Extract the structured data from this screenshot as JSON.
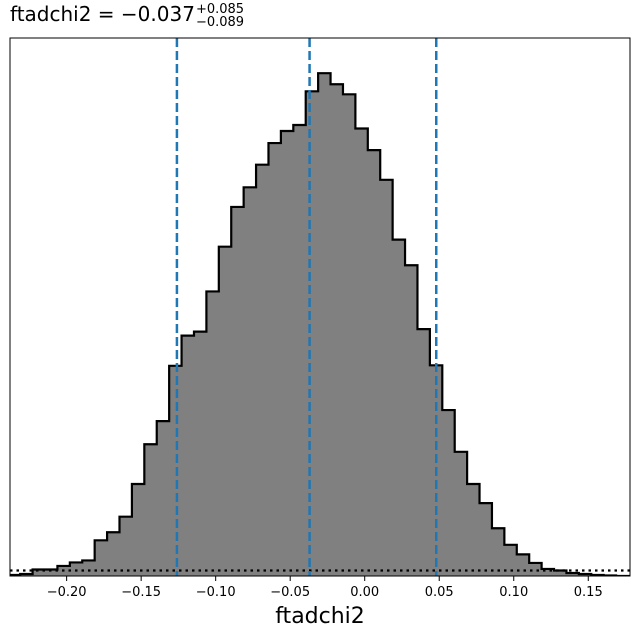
{
  "chart_data": {
    "type": "histogram",
    "title": {
      "param": "ftadchi2",
      "equals": " = ",
      "median": "−0.037",
      "plus": "+0.085",
      "minus": "−0.089"
    },
    "xlabel": "ftadchi2",
    "ylabel": "",
    "xlim": [
      -0.238,
      0.178
    ],
    "ylim": [
      0,
      1.07
    ],
    "x_ticks": [
      -0.2,
      -0.15,
      -0.1,
      -0.05,
      0.0,
      0.05,
      0.1,
      0.15
    ],
    "x_tick_labels": [
      "−0.20",
      "−0.15",
      "−0.10",
      "−0.05",
      "0.00",
      "0.05",
      "0.10",
      "0.15"
    ],
    "bin_start": -0.2395,
    "bin_width": 0.00833,
    "counts": [
      0.002,
      0.004,
      0.013,
      0.013,
      0.02,
      0.027,
      0.031,
      0.071,
      0.087,
      0.118,
      0.183,
      0.262,
      0.308,
      0.418,
      0.478,
      0.486,
      0.566,
      0.655,
      0.734,
      0.773,
      0.818,
      0.861,
      0.885,
      0.897,
      0.964,
      1.0,
      0.978,
      0.958,
      0.89,
      0.847,
      0.788,
      0.669,
      0.618,
      0.491,
      0.419,
      0.33,
      0.247,
      0.183,
      0.145,
      0.095,
      0.062,
      0.043,
      0.026,
      0.014,
      0.011,
      0.006,
      0.004,
      0.002,
      0.001,
      0.0001
    ],
    "fill_color": "#808080",
    "edge_color": "#000000",
    "quantile_lines": [
      -0.126,
      -0.037,
      0.048
    ],
    "quantile_color": "#1f77b4",
    "prior_level": 0.011,
    "prior_style": "dotted",
    "grid": false,
    "legend": "none"
  }
}
